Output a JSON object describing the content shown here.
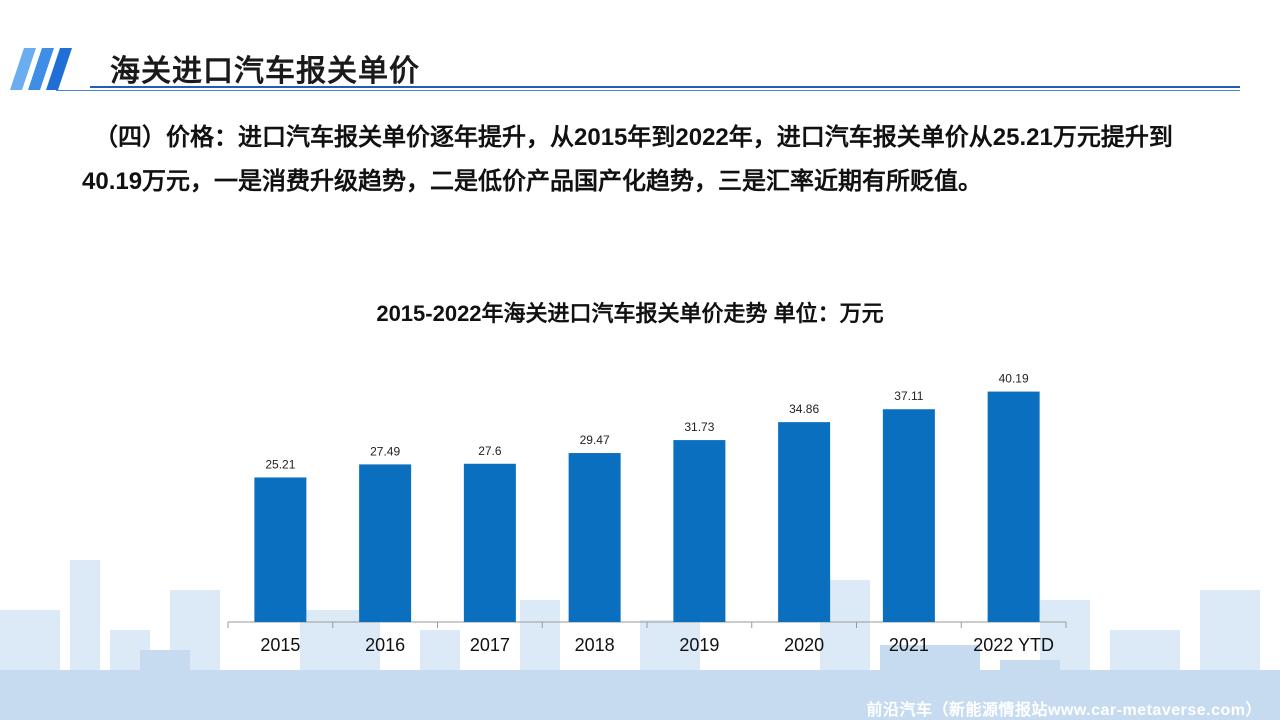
{
  "header": {
    "title": "海关进口汽车报关单价"
  },
  "description": "（四）价格：进口汽车报关单价逐年提升，从2015年到2022年，进口汽车报关单价从25.21万元提升到40.19万元，一是消费升级趋势，二是低价产品国产化趋势，三是汇率近期有所贬值。",
  "chart_data": {
    "type": "bar",
    "title": "2015-2022年海关进口汽车报关单价走势 单位：万元",
    "categories": [
      "2015",
      "2016",
      "2017",
      "2018",
      "2019",
      "2020",
      "2021",
      "2022 YTD"
    ],
    "values": [
      25.21,
      27.49,
      27.6,
      29.47,
      31.73,
      34.86,
      37.11,
      40.19
    ],
    "value_labels": [
      "25.21",
      "27.49",
      "27.6",
      "29.47",
      "31.73",
      "34.86",
      "37.11",
      "40.19"
    ],
    "ylim": [
      0,
      45
    ],
    "grid": false,
    "legend": "none",
    "bar_color": "#0b6fc0"
  },
  "watermark": "前沿汽车（新能源情报站www.car-metaverse.com）",
  "colors": {
    "accent": "#1f5fb4",
    "bar": "#0b6fc0"
  }
}
